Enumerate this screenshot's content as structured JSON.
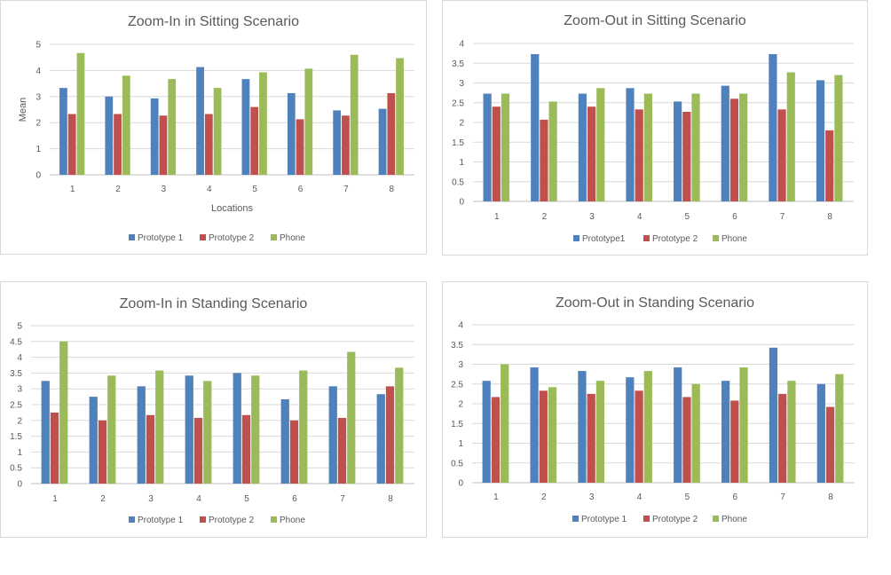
{
  "chart_data": [
    {
      "type": "bar",
      "title": "Zoom-In in Sitting Scenario",
      "xlabel": "Locations",
      "ylabel": "Mean",
      "ylim": [
        0,
        5
      ],
      "yticks": [
        "0",
        "1",
        "2",
        "3",
        "4",
        "5"
      ],
      "categories": [
        "1",
        "2",
        "3",
        "4",
        "5",
        "6",
        "7",
        "8"
      ],
      "series": [
        {
          "name": "Prototype 1",
          "values": [
            3.33,
            3.0,
            2.93,
            4.13,
            3.67,
            3.13,
            2.47,
            2.53
          ]
        },
        {
          "name": "Prototype 2",
          "values": [
            2.33,
            2.33,
            2.27,
            2.33,
            2.6,
            2.13,
            2.27,
            3.13
          ]
        },
        {
          "name": "Phone",
          "values": [
            4.67,
            3.8,
            3.67,
            3.33,
            3.93,
            4.07,
            4.6,
            4.47
          ]
        }
      ],
      "colors": [
        "#4f81bd",
        "#c0504d",
        "#9bbb59"
      ],
      "legend": "bottom",
      "grid": true
    },
    {
      "type": "bar",
      "title": "Zoom-Out in Sitting Scenario",
      "xlabel": "",
      "ylabel": "",
      "ylim": [
        0,
        4
      ],
      "yticks": [
        "0",
        "0.5",
        "1",
        "1.5",
        "2",
        "2.5",
        "3",
        "3.5",
        "4"
      ],
      "categories": [
        "1",
        "2",
        "3",
        "4",
        "5",
        "6",
        "7",
        "8"
      ],
      "series": [
        {
          "name": "Prototype1",
          "values": [
            2.73,
            3.73,
            2.73,
            2.87,
            2.53,
            2.93,
            3.73,
            3.07
          ]
        },
        {
          "name": "Prototype 2",
          "values": [
            2.4,
            2.07,
            2.4,
            2.33,
            2.27,
            2.6,
            2.33,
            1.8
          ]
        },
        {
          "name": "Phone",
          "values": [
            2.73,
            2.53,
            2.87,
            2.73,
            2.73,
            2.73,
            3.27,
            3.2
          ]
        }
      ],
      "colors": [
        "#4f81bd",
        "#c0504d",
        "#9bbb59"
      ],
      "legend": "bottom",
      "grid": true
    },
    {
      "type": "bar",
      "title": "Zoom-In in Standing Scenario",
      "xlabel": "",
      "ylabel": "",
      "ylim": [
        0,
        5
      ],
      "yticks": [
        "0",
        "0.5",
        "1",
        "1.5",
        "2",
        "2.5",
        "3",
        "3.5",
        "4",
        "4.5",
        "5"
      ],
      "categories": [
        "1",
        "2",
        "3",
        "4",
        "5",
        "6",
        "7",
        "8"
      ],
      "series": [
        {
          "name": "Prototype 1",
          "values": [
            3.25,
            2.75,
            3.08,
            3.42,
            3.5,
            2.67,
            3.08,
            2.83
          ]
        },
        {
          "name": "Prototype 2",
          "values": [
            2.25,
            2.0,
            2.17,
            2.08,
            2.17,
            2.0,
            2.08,
            3.08
          ]
        },
        {
          "name": "Phone",
          "values": [
            4.5,
            3.42,
            3.58,
            3.25,
            3.42,
            3.58,
            4.17,
            3.67
          ]
        }
      ],
      "colors": [
        "#4f81bd",
        "#c0504d",
        "#9bbb59"
      ],
      "legend": "bottom",
      "grid": true
    },
    {
      "type": "bar",
      "title": "Zoom-Out in Standing Scenario",
      "xlabel": "",
      "ylabel": "",
      "ylim": [
        0,
        4
      ],
      "yticks": [
        "0",
        "0.5",
        "1",
        "1.5",
        "2",
        "2.5",
        "3",
        "3.5",
        "4"
      ],
      "categories": [
        "1",
        "2",
        "3",
        "4",
        "5",
        "6",
        "7",
        "8"
      ],
      "series": [
        {
          "name": "Prototype 1",
          "values": [
            2.58,
            2.92,
            2.83,
            2.67,
            2.92,
            2.58,
            3.42,
            2.5
          ]
        },
        {
          "name": "Prototype 2",
          "values": [
            2.17,
            2.33,
            2.25,
            2.33,
            2.17,
            2.08,
            2.25,
            1.92
          ]
        },
        {
          "name": "Phone",
          "values": [
            3.0,
            2.42,
            2.58,
            2.83,
            2.5,
            2.92,
            2.58,
            2.75
          ]
        }
      ],
      "colors": [
        "#4f81bd",
        "#c0504d",
        "#9bbb59"
      ],
      "legend": "bottom",
      "grid": true
    }
  ]
}
